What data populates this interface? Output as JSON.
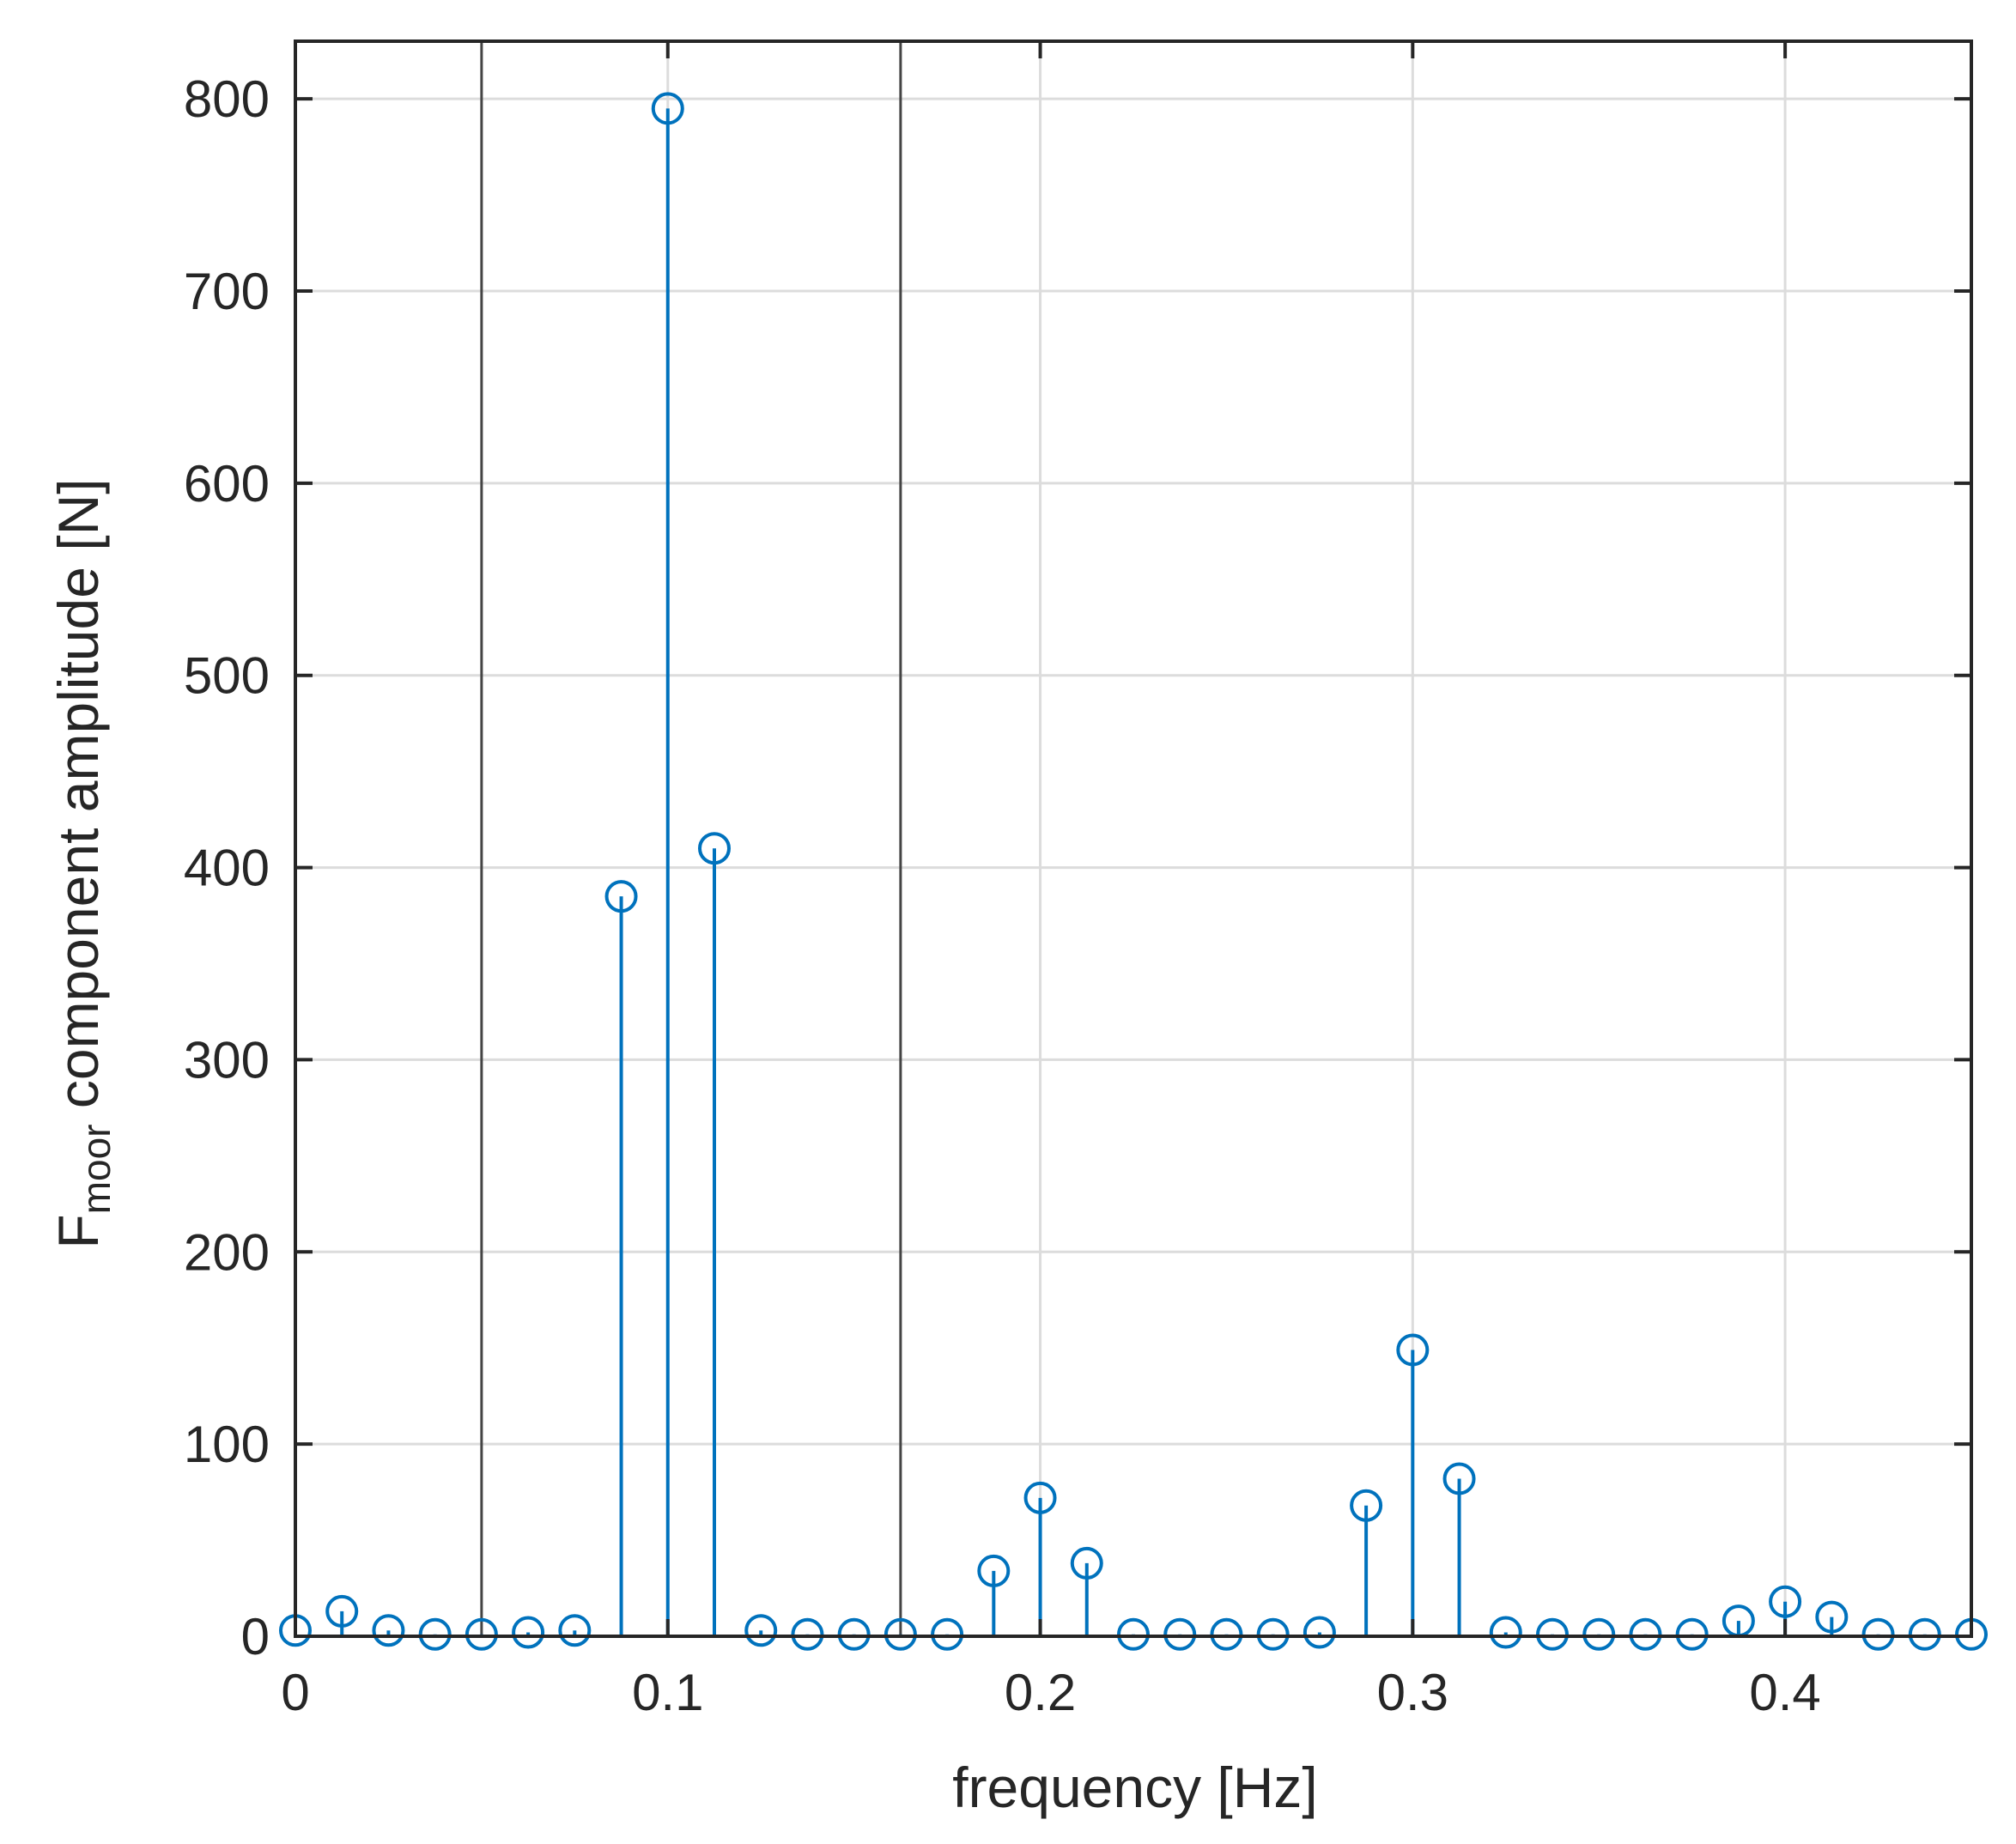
{
  "chart_data": {
    "type": "stem",
    "xlabel": "frequency [Hz]",
    "ylabel": {
      "main": "F",
      "subscript": "moor",
      "rest": " component amplitude [N]"
    },
    "xlim": [
      0,
      0.45
    ],
    "ylim": [
      0,
      830
    ],
    "xticks": [
      0,
      0.1,
      0.2,
      0.3,
      0.4
    ],
    "xtick_labels": [
      "0",
      "0.1",
      "0.2",
      "0.3",
      "0.4"
    ],
    "yticks": [
      0,
      100,
      200,
      300,
      400,
      500,
      600,
      700,
      800
    ],
    "ytick_labels": [
      "0",
      "100",
      "200",
      "300",
      "400",
      "500",
      "600",
      "700",
      "800"
    ],
    "grid": true,
    "colors": {
      "stem": "#0072BD",
      "grid": "#dcdcdc",
      "axes": "#262626",
      "reference_lines": "#444444"
    },
    "reference_lines_x": [
      0.05,
      0.1625
    ],
    "series": [
      {
        "x": [
          0,
          0.0125,
          0.025,
          0.0375,
          0.05,
          0.0625,
          0.075,
          0.0875,
          0.1,
          0.1125,
          0.125,
          0.1375,
          0.15,
          0.1625,
          0.175,
          0.1875,
          0.2,
          0.2125,
          0.225,
          0.2375,
          0.25,
          0.2625,
          0.275,
          0.2875,
          0.3,
          0.3125,
          0.325,
          0.3375,
          0.35,
          0.3625,
          0.375,
          0.3875,
          0.4,
          0.4125,
          0.425,
          0.4375,
          0.45
        ],
        "y": [
          3,
          13,
          3,
          1,
          1,
          2,
          3,
          385,
          795,
          410,
          3,
          1,
          1,
          1,
          1,
          34,
          72,
          38,
          1,
          1,
          1,
          1,
          2,
          68,
          149,
          82,
          2,
          1,
          1,
          1,
          1,
          8,
          18,
          10,
          1,
          1,
          1
        ]
      }
    ]
  }
}
